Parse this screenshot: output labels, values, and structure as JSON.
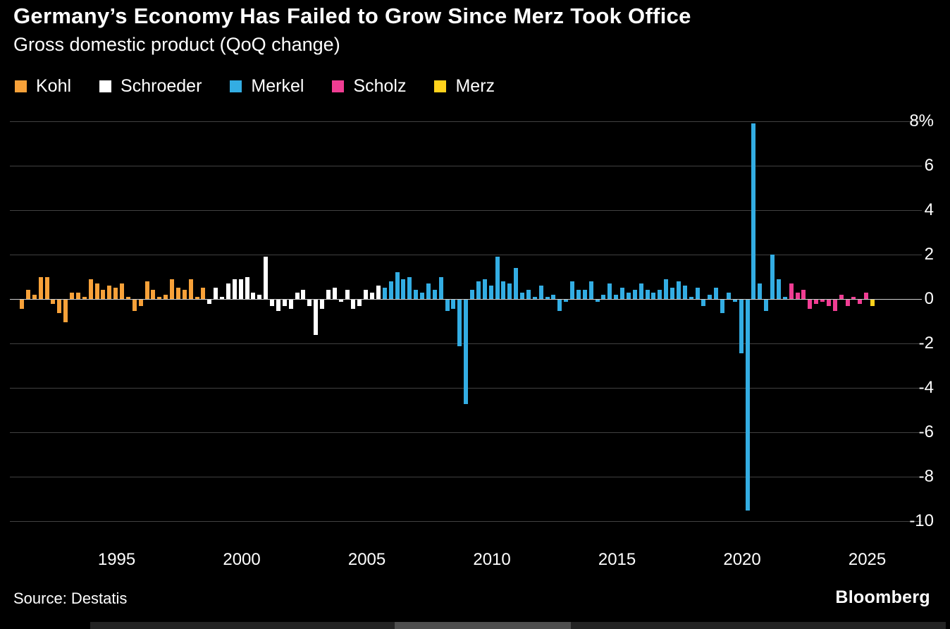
{
  "header": {
    "title": "Germany’s Economy Has Failed to Grow Since Merz Took Office",
    "subtitle": "Gross domestic product (QoQ change)"
  },
  "footer": {
    "source": "Source: Destatis",
    "brand": "Bloomberg"
  },
  "colors": {
    "background": "#000000",
    "grid": "#414141",
    "zero_line": "#d0d0d0",
    "text": "#ffffff"
  },
  "chart_data": {
    "type": "bar",
    "title": "Germany’s Economy Has Failed to Grow Since Merz Took Office",
    "subtitle": "Gross domestic product (QoQ change)",
    "unit": "%",
    "x_start_quarter": "1991Q2",
    "x_tick_years": [
      1995,
      2000,
      2005,
      2010,
      2015,
      2020,
      2025
    ],
    "y_ticks": [
      8,
      6,
      4,
      2,
      0,
      -2,
      -4,
      -6,
      -8,
      -10
    ],
    "y_first_tick_suffix": "%",
    "ylim": [
      -10.5,
      8.6
    ],
    "grid": true,
    "legend_position": "top",
    "eras": [
      {
        "leader": "Kohl",
        "color": "#F7A139",
        "quarters": 30
      },
      {
        "leader": "Schroeder",
        "color": "#FFFFFF",
        "quarters": 28
      },
      {
        "leader": "Merkel",
        "color": "#33ADE3",
        "quarters": 65
      },
      {
        "leader": "Scholz",
        "color": "#F03D93",
        "quarters": 13
      },
      {
        "leader": "Merz",
        "color": "#FFD21C",
        "quarters": 1
      }
    ],
    "values_qoq_pct": [
      -0.4,
      0.4,
      0.2,
      1.0,
      1.0,
      -0.2,
      -0.6,
      -1.0,
      0.3,
      0.3,
      0.1,
      0.9,
      0.7,
      0.4,
      0.6,
      0.5,
      0.7,
      0.1,
      -0.5,
      -0.3,
      0.8,
      0.4,
      0.1,
      0.2,
      0.9,
      0.5,
      0.4,
      0.9,
      0.1,
      0.5,
      -0.2,
      0.5,
      0.1,
      0.7,
      0.9,
      0.9,
      1.0,
      0.3,
      0.2,
      1.9,
      -0.3,
      -0.5,
      -0.3,
      -0.4,
      0.3,
      0.4,
      -0.3,
      -1.6,
      -0.4,
      0.4,
      0.5,
      -0.1,
      0.4,
      -0.4,
      -0.3,
      0.4,
      0.3,
      0.6,
      0.5,
      0.8,
      1.2,
      0.9,
      1.0,
      0.4,
      0.3,
      0.7,
      0.4,
      1.0,
      -0.5,
      -0.4,
      -2.1,
      -4.7,
      0.4,
      0.8,
      0.9,
      0.6,
      1.9,
      0.8,
      0.7,
      1.4,
      0.3,
      0.4,
      0.1,
      0.6,
      0.1,
      0.2,
      -0.5,
      -0.1,
      0.8,
      0.4,
      0.4,
      0.8,
      -0.1,
      0.2,
      0.7,
      0.2,
      0.5,
      0.3,
      0.4,
      0.7,
      0.4,
      0.3,
      0.4,
      0.9,
      0.5,
      0.8,
      0.6,
      0.1,
      0.5,
      -0.3,
      0.2,
      0.5,
      -0.6,
      0.3,
      -0.1,
      -2.4,
      -9.5,
      7.9,
      0.7,
      -0.5,
      2.0,
      0.9,
      0.1,
      0.7,
      0.3,
      0.4,
      -0.4,
      -0.2,
      -0.1,
      -0.3,
      -0.5,
      0.2,
      -0.3,
      0.1,
      -0.2,
      0.3,
      -0.3
    ]
  }
}
